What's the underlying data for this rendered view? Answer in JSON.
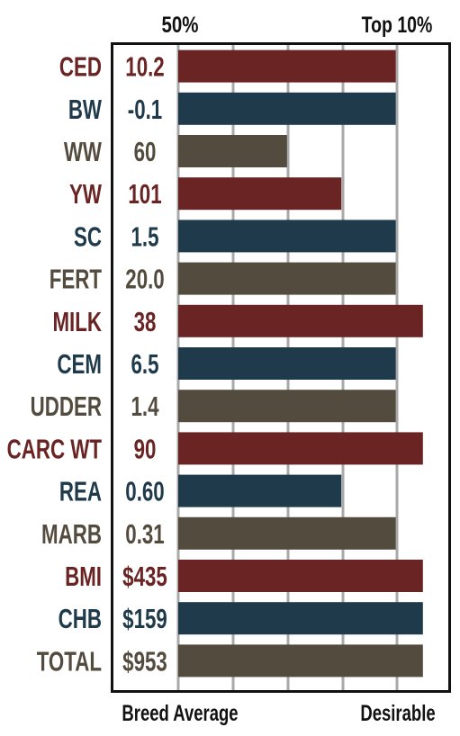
{
  "chart_data": {
    "type": "bar",
    "orientation": "horizontal",
    "top_labels": {
      "left": "50%",
      "right": "Top 10%"
    },
    "bottom_labels": {
      "left": "Breed Average",
      "right": "Desirable"
    },
    "grid": true,
    "scale_note": "bar length expressed as fraction of the chart width (0 = breed average axis, 1 = right edge)",
    "colors": {
      "red": "#6a2424",
      "blue": "#1f3a4b",
      "brown": "#544b3f"
    },
    "rows": [
      {
        "trait": "CED",
        "value": "10.2",
        "level": 0.8,
        "color": "red"
      },
      {
        "trait": "BW",
        "value": "-0.1",
        "level": 0.8,
        "color": "blue"
      },
      {
        "trait": "WW",
        "value": "60",
        "level": 0.4,
        "color": "brown"
      },
      {
        "trait": "YW",
        "value": "101",
        "level": 0.6,
        "color": "red"
      },
      {
        "trait": "SC",
        "value": "1.5",
        "level": 0.8,
        "color": "blue"
      },
      {
        "trait": "FERT",
        "value": "20.0",
        "level": 0.8,
        "color": "brown"
      },
      {
        "trait": "MILK",
        "value": "38",
        "level": 0.9,
        "color": "red"
      },
      {
        "trait": "CEM",
        "value": "6.5",
        "level": 0.8,
        "color": "blue"
      },
      {
        "trait": "UDDER",
        "value": "1.4",
        "level": 0.8,
        "color": "brown"
      },
      {
        "trait": "CARC WT",
        "value": "90",
        "level": 0.9,
        "color": "red"
      },
      {
        "trait": "REA",
        "value": "0.60",
        "level": 0.6,
        "color": "blue"
      },
      {
        "trait": "MARB",
        "value": "0.31",
        "level": 0.8,
        "color": "brown"
      },
      {
        "trait": "BMI",
        "value": "$435",
        "level": 0.9,
        "color": "red"
      },
      {
        "trait": "CHB",
        "value": "$159",
        "level": 0.9,
        "color": "blue"
      },
      {
        "trait": "TOTAL",
        "value": "$953",
        "level": 0.9,
        "color": "brown"
      }
    ]
  }
}
